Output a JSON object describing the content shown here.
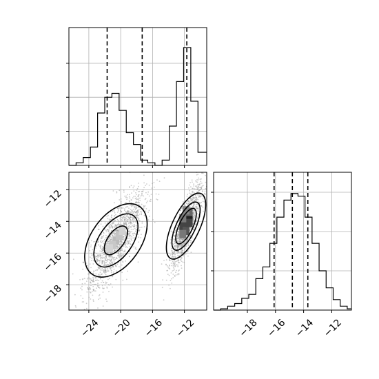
{
  "chart_data": [
    {
      "type": "histogram",
      "panel": "top-left marginal (parameter 1)",
      "xlim": [
        -26.5,
        -9.2
      ],
      "ylim": [
        0,
        1.0
      ],
      "grid": true,
      "bin_edges": [
        -26.5,
        -25.6,
        -24.7,
        -23.8,
        -22.9,
        -22.0,
        -21.1,
        -20.2,
        -19.3,
        -18.4,
        -17.5,
        -16.6,
        -15.7,
        -14.8,
        -13.9,
        -13.0,
        -12.1,
        -11.2,
        -10.3,
        -9.2
      ],
      "counts": [
        0.0,
        0.02,
        0.06,
        0.14,
        0.4,
        0.52,
        0.55,
        0.42,
        0.25,
        0.16,
        0.04,
        0.02,
        0.0,
        0.04,
        0.3,
        0.64,
        0.9,
        0.49,
        0.1
      ],
      "quantile_lines": [
        -21.7,
        -17.3,
        -11.7
      ]
    },
    {
      "type": "scatter-density",
      "panel": "lower-left joint (parameter 1 vs parameter 2)",
      "xlim": [
        -26.5,
        -9.2
      ],
      "ylim": [
        -19.6,
        -10.9
      ],
      "grid": true,
      "x_ticks": [
        -24,
        -20,
        -16,
        -12
      ],
      "y_ticks": [
        -18,
        -16,
        -14,
        -12
      ],
      "clusters": [
        {
          "center": [
            -20.6,
            -15.2
          ],
          "corr_slope": 1.0
        },
        {
          "center": [
            -11.8,
            -14.3
          ],
          "corr_slope": 1.6
        }
      ]
    },
    {
      "type": "histogram",
      "panel": "bottom-right marginal (parameter 2)",
      "xlim": [
        -20.4,
        -10.6
      ],
      "ylim": [
        0,
        1.0
      ],
      "grid": true,
      "x_ticks": [
        -18,
        -16,
        -14,
        -12
      ],
      "bin_edges": [
        -20.4,
        -19.9,
        -19.4,
        -18.9,
        -18.4,
        -17.9,
        -17.4,
        -16.9,
        -16.4,
        -15.9,
        -15.4,
        -14.9,
        -14.4,
        -13.9,
        -13.4,
        -12.9,
        -12.4,
        -11.9,
        -11.4,
        -10.9,
        -10.6
      ],
      "counts": [
        0.0,
        0.01,
        0.03,
        0.05,
        0.09,
        0.12,
        0.24,
        0.33,
        0.51,
        0.71,
        0.84,
        0.89,
        0.87,
        0.71,
        0.51,
        0.3,
        0.17,
        0.08,
        0.03,
        0.01
      ],
      "quantile_lines": [
        -16.1,
        -14.8,
        -13.7
      ]
    }
  ]
}
